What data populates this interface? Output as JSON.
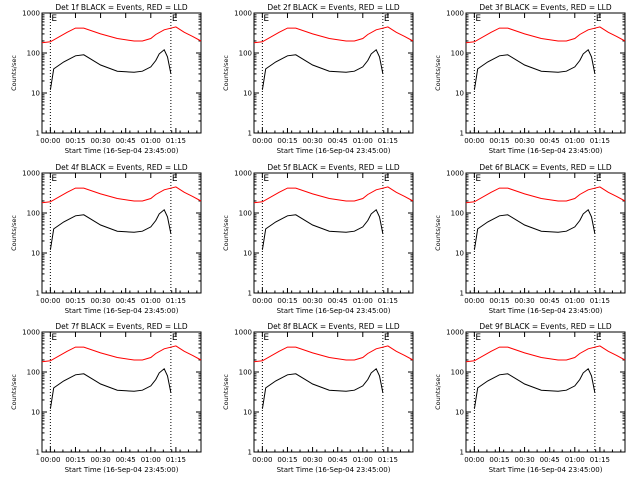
{
  "chart_data": [
    {
      "type": "line",
      "title": "Det 1f BLACK = Events, RED = LLD",
      "ylabel": "Counts/sec",
      "xlabel": "Start Time (16-Sep-04 23:45:00)",
      "yscale": "log",
      "ylim": [
        1,
        1000
      ],
      "xlim": [
        -5,
        90
      ],
      "x_ticks": [
        "00:00",
        "00:15",
        "00:30",
        "00:45",
        "01:00",
        "01:15"
      ],
      "x_tick_values": [
        0,
        15,
        30,
        45,
        60,
        75
      ],
      "y_ticks": [
        "1",
        "10",
        "100",
        "1000"
      ],
      "y_tick_values": [
        1,
        10,
        100,
        1000
      ],
      "markers": [
        0,
        72
      ],
      "marker_labels": [
        "E",
        "E"
      ],
      "series": [
        {
          "color": "#ff0000",
          "x": [
            -5,
            0,
            10,
            15,
            20,
            30,
            40,
            50,
            55,
            60,
            63,
            68,
            75,
            80,
            85,
            90
          ],
          "y": [
            180,
            190,
            330,
            420,
            420,
            300,
            230,
            200,
            200,
            230,
            290,
            380,
            450,
            330,
            260,
            200
          ]
        },
        {
          "color": "#000000",
          "x": [
            0,
            2,
            8,
            15,
            20,
            30,
            40,
            50,
            55,
            60,
            63,
            65,
            68,
            70,
            72
          ],
          "y": [
            12,
            40,
            60,
            85,
            90,
            50,
            35,
            33,
            35,
            45,
            65,
            95,
            120,
            80,
            30
          ]
        }
      ]
    },
    {
      "type": "line",
      "title": "Det 2f BLACK = Events, RED = LLD",
      "ylabel": "Counts/sec",
      "xlabel": "Start Time (16-Sep-04 23:45:00)",
      "yscale": "log",
      "ylim": [
        1,
        1000
      ],
      "xlim": [
        -5,
        90
      ],
      "x_ticks": [
        "00:00",
        "00:15",
        "00:30",
        "00:45",
        "01:00",
        "01:15"
      ],
      "x_tick_values": [
        0,
        15,
        30,
        45,
        60,
        75
      ],
      "y_ticks": [
        "1",
        "10",
        "100",
        "1000"
      ],
      "y_tick_values": [
        1,
        10,
        100,
        1000
      ],
      "markers": [
        0,
        72
      ],
      "marker_labels": [
        "E",
        "E"
      ],
      "series": [
        {
          "color": "#ff0000",
          "x": [
            -5,
            0,
            10,
            15,
            20,
            30,
            40,
            50,
            55,
            60,
            63,
            68,
            75,
            80,
            85,
            90
          ],
          "y": [
            180,
            190,
            330,
            420,
            420,
            300,
            230,
            200,
            200,
            230,
            290,
            380,
            450,
            330,
            260,
            200
          ]
        },
        {
          "color": "#000000",
          "x": [
            0,
            2,
            8,
            15,
            20,
            30,
            40,
            50,
            55,
            60,
            63,
            65,
            68,
            70,
            72
          ],
          "y": [
            12,
            40,
            60,
            85,
            90,
            50,
            35,
            33,
            35,
            45,
            65,
            95,
            120,
            80,
            30
          ]
        }
      ]
    },
    {
      "type": "line",
      "title": "Det 3f BLACK = Events, RED = LLD",
      "ylabel": "Counts/sec",
      "xlabel": "Start Time (16-Sep-04 23:45:00)",
      "yscale": "log",
      "ylim": [
        1,
        1000
      ],
      "xlim": [
        -5,
        90
      ],
      "x_ticks": [
        "00:00",
        "00:15",
        "00:30",
        "00:45",
        "01:00",
        "01:15"
      ],
      "x_tick_values": [
        0,
        15,
        30,
        45,
        60,
        75
      ],
      "y_ticks": [
        "1",
        "10",
        "100",
        "1000"
      ],
      "y_tick_values": [
        1,
        10,
        100,
        1000
      ],
      "markers": [
        0,
        72
      ],
      "marker_labels": [
        "E",
        "E"
      ],
      "series": [
        {
          "color": "#ff0000",
          "x": [
            -5,
            0,
            10,
            15,
            20,
            30,
            40,
            50,
            55,
            60,
            63,
            68,
            75,
            80,
            85,
            90
          ],
          "y": [
            180,
            190,
            330,
            420,
            420,
            300,
            230,
            200,
            200,
            230,
            290,
            380,
            450,
            330,
            260,
            200
          ]
        },
        {
          "color": "#000000",
          "x": [
            0,
            2,
            8,
            15,
            20,
            30,
            40,
            50,
            55,
            60,
            63,
            65,
            68,
            70,
            72
          ],
          "y": [
            12,
            40,
            60,
            85,
            90,
            50,
            35,
            33,
            35,
            45,
            65,
            95,
            120,
            80,
            30
          ]
        }
      ]
    },
    {
      "type": "line",
      "title": "Det 4f BLACK = Events, RED = LLD",
      "ylabel": "Counts/sec",
      "xlabel": "Start Time (16-Sep-04 23:45:00)",
      "yscale": "log",
      "ylim": [
        1,
        1000
      ],
      "xlim": [
        -5,
        90
      ],
      "x_ticks": [
        "00:00",
        "00:15",
        "00:30",
        "00:45",
        "01:00",
        "01:15"
      ],
      "x_tick_values": [
        0,
        15,
        30,
        45,
        60,
        75
      ],
      "y_ticks": [
        "1",
        "10",
        "100",
        "1000"
      ],
      "y_tick_values": [
        1,
        10,
        100,
        1000
      ],
      "markers": [
        0,
        72
      ],
      "marker_labels": [
        "E",
        "E"
      ],
      "series": [
        {
          "color": "#ff0000",
          "x": [
            -5,
            0,
            10,
            15,
            20,
            30,
            40,
            50,
            55,
            60,
            63,
            68,
            75,
            80,
            85,
            90
          ],
          "y": [
            180,
            190,
            330,
            420,
            420,
            300,
            230,
            200,
            200,
            230,
            290,
            380,
            450,
            330,
            260,
            200
          ]
        },
        {
          "color": "#000000",
          "x": [
            0,
            2,
            8,
            15,
            20,
            30,
            40,
            50,
            55,
            60,
            63,
            65,
            68,
            70,
            72
          ],
          "y": [
            12,
            40,
            60,
            85,
            90,
            50,
            35,
            33,
            35,
            45,
            65,
            95,
            120,
            80,
            30
          ]
        }
      ]
    },
    {
      "type": "line",
      "title": "Det 5f BLACK = Events, RED = LLD",
      "ylabel": "Counts/sec",
      "xlabel": "Start Time (16-Sep-04 23:45:00)",
      "yscale": "log",
      "ylim": [
        1,
        1000
      ],
      "xlim": [
        -5,
        90
      ],
      "x_ticks": [
        "00:00",
        "00:15",
        "00:30",
        "00:45",
        "01:00",
        "01:15"
      ],
      "x_tick_values": [
        0,
        15,
        30,
        45,
        60,
        75
      ],
      "y_ticks": [
        "1",
        "10",
        "100",
        "1000"
      ],
      "y_tick_values": [
        1,
        10,
        100,
        1000
      ],
      "markers": [
        0,
        72
      ],
      "marker_labels": [
        "E",
        "E"
      ],
      "series": [
        {
          "color": "#ff0000",
          "x": [
            -5,
            0,
            10,
            15,
            20,
            30,
            40,
            50,
            55,
            60,
            63,
            68,
            75,
            80,
            85,
            90
          ],
          "y": [
            180,
            190,
            330,
            420,
            420,
            300,
            230,
            200,
            200,
            230,
            290,
            380,
            450,
            330,
            260,
            200
          ]
        },
        {
          "color": "#000000",
          "x": [
            0,
            2,
            8,
            15,
            20,
            30,
            40,
            50,
            55,
            60,
            63,
            65,
            68,
            70,
            72
          ],
          "y": [
            12,
            40,
            60,
            85,
            90,
            50,
            35,
            33,
            35,
            45,
            65,
            95,
            120,
            80,
            30
          ]
        }
      ]
    },
    {
      "type": "line",
      "title": "Det 6f BLACK = Events, RED = LLD",
      "ylabel": "Counts/sec",
      "xlabel": "Start Time (16-Sep-04 23:45:00)",
      "yscale": "log",
      "ylim": [
        1,
        1000
      ],
      "xlim": [
        -5,
        90
      ],
      "x_ticks": [
        "00:00",
        "00:15",
        "00:30",
        "00:45",
        "01:00",
        "01:15"
      ],
      "x_tick_values": [
        0,
        15,
        30,
        45,
        60,
        75
      ],
      "y_ticks": [
        "1",
        "10",
        "100",
        "1000"
      ],
      "y_tick_values": [
        1,
        10,
        100,
        1000
      ],
      "markers": [
        0,
        72
      ],
      "marker_labels": [
        "E",
        "E"
      ],
      "series": [
        {
          "color": "#ff0000",
          "x": [
            -5,
            0,
            10,
            15,
            20,
            30,
            40,
            50,
            55,
            60,
            63,
            68,
            75,
            80,
            85,
            90
          ],
          "y": [
            180,
            190,
            330,
            420,
            420,
            300,
            230,
            200,
            200,
            230,
            290,
            380,
            450,
            330,
            260,
            200
          ]
        },
        {
          "color": "#000000",
          "x": [
            0,
            2,
            8,
            15,
            20,
            30,
            40,
            50,
            55,
            60,
            63,
            65,
            68,
            70,
            72
          ],
          "y": [
            12,
            40,
            60,
            85,
            90,
            50,
            35,
            33,
            35,
            45,
            65,
            95,
            120,
            80,
            30
          ]
        }
      ]
    },
    {
      "type": "line",
      "title": "Det 7f BLACK = Events, RED = LLD",
      "ylabel": "Counts/sec",
      "xlabel": "Start Time (16-Sep-04 23:45:00)",
      "yscale": "log",
      "ylim": [
        1,
        1000
      ],
      "xlim": [
        -5,
        90
      ],
      "x_ticks": [
        "00:00",
        "00:15",
        "00:30",
        "00:45",
        "01:00",
        "01:15"
      ],
      "x_tick_values": [
        0,
        15,
        30,
        45,
        60,
        75
      ],
      "y_ticks": [
        "1",
        "10",
        "100",
        "1000"
      ],
      "y_tick_values": [
        1,
        10,
        100,
        1000
      ],
      "markers": [
        0,
        72
      ],
      "marker_labels": [
        "E",
        "E"
      ],
      "series": [
        {
          "color": "#ff0000",
          "x": [
            -5,
            0,
            10,
            15,
            20,
            30,
            40,
            50,
            55,
            60,
            63,
            68,
            75,
            80,
            85,
            90
          ],
          "y": [
            180,
            190,
            330,
            420,
            420,
            300,
            230,
            200,
            200,
            230,
            290,
            380,
            450,
            330,
            260,
            200
          ]
        },
        {
          "color": "#000000",
          "x": [
            0,
            2,
            8,
            15,
            20,
            30,
            40,
            50,
            55,
            60,
            63,
            65,
            68,
            70,
            72
          ],
          "y": [
            12,
            40,
            60,
            85,
            90,
            50,
            35,
            33,
            35,
            45,
            65,
            95,
            120,
            80,
            30
          ]
        }
      ]
    },
    {
      "type": "line",
      "title": "Det 8f BLACK = Events, RED = LLD",
      "ylabel": "Counts/sec",
      "xlabel": "Start Time (16-Sep-04 23:45:00)",
      "yscale": "log",
      "ylim": [
        1,
        1000
      ],
      "xlim": [
        -5,
        90
      ],
      "x_ticks": [
        "00:00",
        "00:15",
        "00:30",
        "00:45",
        "01:00",
        "01:15"
      ],
      "x_tick_values": [
        0,
        15,
        30,
        45,
        60,
        75
      ],
      "y_ticks": [
        "1",
        "10",
        "100",
        "1000"
      ],
      "y_tick_values": [
        1,
        10,
        100,
        1000
      ],
      "markers": [
        0,
        72
      ],
      "marker_labels": [
        "E",
        "E"
      ],
      "series": [
        {
          "color": "#ff0000",
          "x": [
            -5,
            0,
            10,
            15,
            20,
            30,
            40,
            50,
            55,
            60,
            63,
            68,
            75,
            80,
            85,
            90
          ],
          "y": [
            180,
            190,
            330,
            420,
            420,
            300,
            230,
            200,
            200,
            230,
            290,
            380,
            450,
            330,
            260,
            200
          ]
        },
        {
          "color": "#000000",
          "x": [
            0,
            2,
            8,
            15,
            20,
            30,
            40,
            50,
            55,
            60,
            63,
            65,
            68,
            70,
            72
          ],
          "y": [
            12,
            40,
            60,
            85,
            90,
            50,
            35,
            33,
            35,
            45,
            65,
            95,
            120,
            80,
            30
          ]
        }
      ]
    },
    {
      "type": "line",
      "title": "Det 9f BLACK = Events, RED = LLD",
      "ylabel": "Counts/sec",
      "xlabel": "Start Time (16-Sep-04 23:45:00)",
      "yscale": "log",
      "ylim": [
        1,
        1000
      ],
      "xlim": [
        -5,
        90
      ],
      "x_ticks": [
        "00:00",
        "00:15",
        "00:30",
        "00:45",
        "01:00",
        "01:15"
      ],
      "x_tick_values": [
        0,
        15,
        30,
        45,
        60,
        75
      ],
      "y_ticks": [
        "1",
        "10",
        "100",
        "1000"
      ],
      "y_tick_values": [
        1,
        10,
        100,
        1000
      ],
      "markers": [
        0,
        72
      ],
      "marker_labels": [
        "E",
        "E"
      ],
      "series": [
        {
          "color": "#ff0000",
          "x": [
            -5,
            0,
            10,
            15,
            20,
            30,
            40,
            50,
            55,
            60,
            63,
            68,
            75,
            80,
            85,
            90
          ],
          "y": [
            180,
            190,
            330,
            420,
            420,
            300,
            230,
            200,
            200,
            230,
            290,
            380,
            450,
            330,
            260,
            200
          ]
        },
        {
          "color": "#000000",
          "x": [
            0,
            2,
            8,
            15,
            20,
            30,
            40,
            50,
            55,
            60,
            63,
            65,
            68,
            70,
            72
          ],
          "y": [
            12,
            40,
            60,
            85,
            90,
            50,
            35,
            33,
            35,
            45,
            65,
            95,
            120,
            80,
            30
          ]
        }
      ]
    }
  ]
}
